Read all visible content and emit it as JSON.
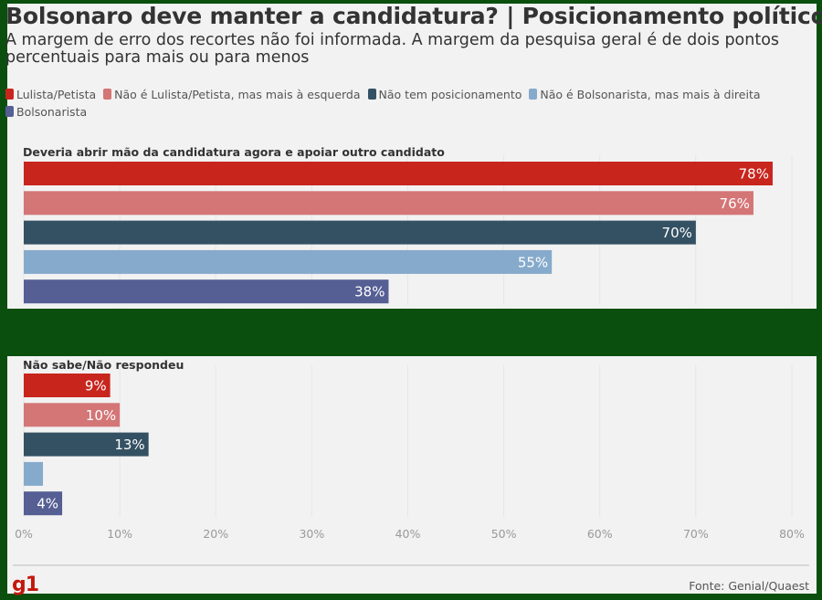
{
  "title": "Bolsonaro deve manter a candidatura? | Posicionamento político",
  "subtitle": "A margem de erro dos recortes não foi informada. A margem da pesquisa geral é de dois pontos percentuais para mais ou para menos",
  "source": "Fonte: Genial/Quaest",
  "logo": "g1",
  "chart_data": {
    "type": "bar",
    "orientation": "horizontal",
    "xlim": [
      0,
      80
    ],
    "x_ticks": [
      "0%",
      "10%",
      "20%",
      "30%",
      "40%",
      "50%",
      "60%",
      "70%",
      "80%"
    ],
    "legend_placement": "top",
    "series": [
      {
        "name": "Lulista/Petista",
        "color": "#c8251d"
      },
      {
        "name": "Não é Lulista/Petista, mas mais à esquerda",
        "color": "#d47576"
      },
      {
        "name": "Não tem posicionamento",
        "color": "#345163"
      },
      {
        "name": "Não é Bolsonarista, mas mais à direita",
        "color": "#86aacb"
      },
      {
        "name": "Bolsonarista",
        "color": "#555f94"
      }
    ],
    "groups": [
      {
        "label": "Deveria abrir mão da candidatura agora e apoiar outro candidato",
        "values": [
          78,
          76,
          70,
          55,
          38
        ],
        "value_labels": [
          "78%",
          "76%",
          "70%",
          "55%",
          "38%"
        ]
      },
      {
        "label": "Não sabe/Não respondeu",
        "values": [
          9,
          10,
          13,
          2,
          4
        ],
        "value_labels": [
          "9%",
          "10%",
          "13%",
          "",
          "4%"
        ]
      }
    ]
  }
}
